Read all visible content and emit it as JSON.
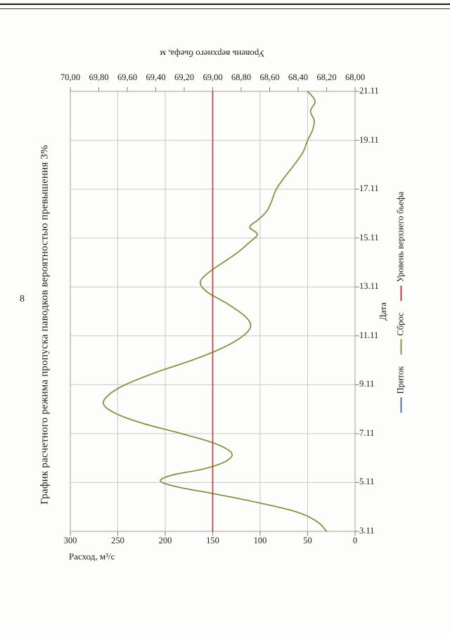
{
  "page": {
    "number": "8",
    "title": "График расчетного режима пропуска паводков вероятностью превышения 3%"
  },
  "chart_data": {
    "type": "line",
    "title": "График расчетного режима пропуска паводков вероятностью превышения 3%",
    "orientation": "chart rotated 90 degrees counter-clockwise on portrait page",
    "grid": true,
    "x_axis": {
      "label": "Дата",
      "range": [
        3,
        21
      ],
      "tick_labels": [
        "3.11",
        "5.11",
        "7.11",
        "9.11",
        "11.11",
        "13.11",
        "15.11",
        "17.11",
        "19.11",
        "21.11"
      ]
    },
    "y_axis_primary": {
      "label": "Расход, м³/с",
      "range": [
        0,
        300
      ],
      "tick_labels": [
        "0",
        "50",
        "100",
        "150",
        "200",
        "250",
        "300"
      ]
    },
    "y_axis_secondary": {
      "label": "Уровень верхнего бьефа, м",
      "range": [
        68,
        70
      ],
      "tick_labels": [
        "68,00",
        "68,20",
        "68,40",
        "68,60",
        "68,80",
        "69,00",
        "69,20",
        "69,40",
        "69,60",
        "69,80",
        "70,00"
      ]
    },
    "legend_position": "outer-bottom",
    "series": [
      {
        "name": "Приток",
        "color": "#4f6fae",
        "axis": "primary",
        "width": 1.5,
        "points": [
          [
            3.0,
            30
          ],
          [
            3.4,
            40
          ],
          [
            3.8,
            62
          ],
          [
            4.2,
            105
          ],
          [
            4.55,
            150
          ],
          [
            4.8,
            185
          ],
          [
            5.05,
            205
          ],
          [
            5.3,
            193
          ],
          [
            5.55,
            160
          ],
          [
            5.85,
            137
          ],
          [
            6.2,
            130
          ],
          [
            6.6,
            148
          ],
          [
            7.0,
            183
          ],
          [
            7.4,
            222
          ],
          [
            7.8,
            251
          ],
          [
            8.2,
            265
          ],
          [
            8.6,
            259
          ],
          [
            9.0,
            242
          ],
          [
            9.5,
            210
          ],
          [
            10.0,
            172
          ],
          [
            10.5,
            140
          ],
          [
            11.0,
            118
          ],
          [
            11.4,
            110
          ],
          [
            11.8,
            116
          ],
          [
            12.3,
            134
          ],
          [
            12.8,
            156
          ],
          [
            13.2,
            163
          ],
          [
            13.6,
            154
          ],
          [
            14.0,
            139
          ],
          [
            14.4,
            124
          ],
          [
            14.8,
            112
          ],
          [
            15.15,
            103
          ],
          [
            15.45,
            111
          ],
          [
            15.75,
            102
          ],
          [
            16.1,
            93
          ],
          [
            16.5,
            88
          ],
          [
            17.0,
            83
          ],
          [
            17.5,
            74
          ],
          [
            18.0,
            64
          ],
          [
            18.5,
            55
          ],
          [
            19.0,
            50
          ],
          [
            19.4,
            45
          ],
          [
            19.8,
            43
          ],
          [
            20.2,
            47
          ],
          [
            20.6,
            42
          ],
          [
            21.0,
            50
          ]
        ]
      },
      {
        "name": "Сброс",
        "color": "#7a9a3c",
        "axis": "primary",
        "width": 1.7,
        "points": [
          [
            3.0,
            30
          ],
          [
            3.4,
            40
          ],
          [
            3.8,
            62
          ],
          [
            4.2,
            105
          ],
          [
            4.55,
            150
          ],
          [
            4.8,
            185
          ],
          [
            5.05,
            205
          ],
          [
            5.3,
            193
          ],
          [
            5.55,
            160
          ],
          [
            5.85,
            137
          ],
          [
            6.2,
            130
          ],
          [
            6.6,
            148
          ],
          [
            7.0,
            183
          ],
          [
            7.4,
            222
          ],
          [
            7.8,
            251
          ],
          [
            8.2,
            265
          ],
          [
            8.6,
            259
          ],
          [
            9.0,
            242
          ],
          [
            9.5,
            210
          ],
          [
            10.0,
            172
          ],
          [
            10.5,
            140
          ],
          [
            11.0,
            118
          ],
          [
            11.4,
            110
          ],
          [
            11.8,
            116
          ],
          [
            12.3,
            134
          ],
          [
            12.8,
            156
          ],
          [
            13.2,
            163
          ],
          [
            13.6,
            154
          ],
          [
            14.0,
            139
          ],
          [
            14.4,
            124
          ],
          [
            14.8,
            112
          ],
          [
            15.15,
            103
          ],
          [
            15.45,
            111
          ],
          [
            15.75,
            102
          ],
          [
            16.1,
            93
          ],
          [
            16.5,
            88
          ],
          [
            17.0,
            83
          ],
          [
            17.5,
            74
          ],
          [
            18.0,
            64
          ],
          [
            18.5,
            55
          ],
          [
            19.0,
            50
          ],
          [
            19.4,
            45
          ],
          [
            19.8,
            43
          ],
          [
            20.2,
            47
          ],
          [
            20.6,
            42
          ],
          [
            21.0,
            50
          ]
        ]
      },
      {
        "name": "Уровень верхнего бьефа",
        "color": "#c43c3c",
        "axis": "secondary",
        "width": 1.7,
        "points": [
          [
            3.0,
            69.0
          ],
          [
            21.0,
            69.0
          ]
        ]
      }
    ]
  },
  "colors": {
    "grid": "#c8c8c8",
    "plot_border": "#a0a0a0",
    "tick_mark": "#7f7f7f",
    "text": "#1a1a1a",
    "paper": "#fdfdfb"
  }
}
